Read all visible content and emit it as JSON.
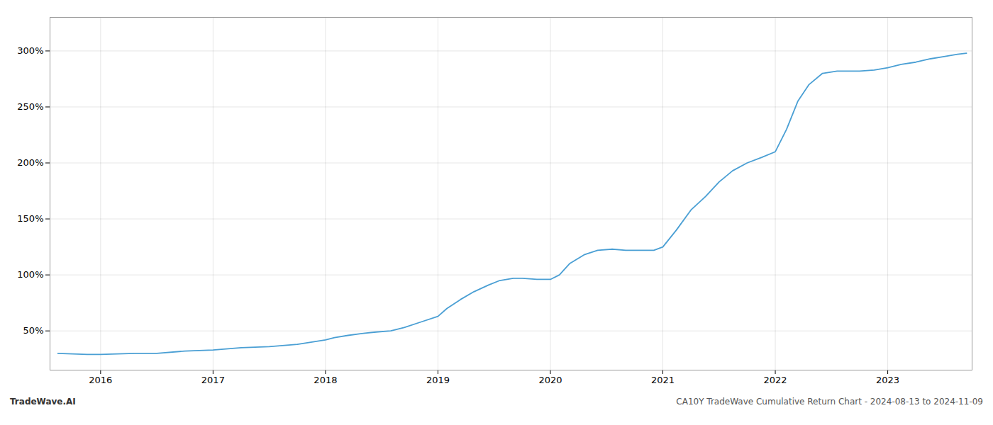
{
  "chart_data": {
    "type": "line",
    "title": "CA10Y TradeWave Cumulative Return Chart - 2024-08-13 to 2024-11-09",
    "annotations": [
      "TradeWave.AI"
    ],
    "x": [
      2015.62,
      2015.75,
      2015.88,
      2016.0,
      2016.15,
      2016.3,
      2016.5,
      2016.75,
      2017.0,
      2017.25,
      2017.5,
      2017.75,
      2018.0,
      2018.08,
      2018.2,
      2018.35,
      2018.45,
      2018.58,
      2018.7,
      2018.85,
      2019.0,
      2019.08,
      2019.2,
      2019.32,
      2019.45,
      2019.55,
      2019.67,
      2019.75,
      2019.88,
      2019.96,
      2020.0,
      2020.08,
      2020.17,
      2020.3,
      2020.42,
      2020.55,
      2020.67,
      2020.8,
      2020.92,
      2021.0,
      2021.12,
      2021.25,
      2021.38,
      2021.5,
      2021.62,
      2021.75,
      2021.88,
      2022.0,
      2022.1,
      2022.2,
      2022.3,
      2022.42,
      2022.55,
      2022.67,
      2022.75,
      2022.88,
      2023.0,
      2023.12,
      2023.25,
      2023.38,
      2023.5,
      2023.62,
      2023.7
    ],
    "values": [
      30,
      29.5,
      29,
      29,
      29.5,
      30,
      30,
      32,
      33,
      35,
      36,
      38,
      42,
      44,
      46,
      48,
      49,
      50,
      53,
      58,
      63,
      70,
      78,
      85,
      91,
      95,
      97,
      97,
      96,
      96,
      96,
      100,
      110,
      118,
      122,
      123,
      122,
      122,
      122,
      125,
      140,
      158,
      170,
      183,
      193,
      200,
      205,
      210,
      230,
      255,
      270,
      280,
      282,
      282,
      282,
      283,
      285,
      288,
      290,
      293,
      295,
      297,
      298
    ],
    "color": "#4a9fd4",
    "xlim": [
      2015.55,
      2023.75
    ],
    "ylim": [
      15,
      330
    ],
    "xticks": [
      2016,
      2017,
      2018,
      2019,
      2020,
      2021,
      2022,
      2023
    ],
    "yticks": [
      {
        "value": 50,
        "label": "50%"
      },
      {
        "value": 100,
        "label": "100%"
      },
      {
        "value": 150,
        "label": "150%"
      },
      {
        "value": 200,
        "label": "200%"
      },
      {
        "value": 250,
        "label": "250%"
      },
      {
        "value": 300,
        "label": "300%"
      }
    ],
    "grid": true
  }
}
